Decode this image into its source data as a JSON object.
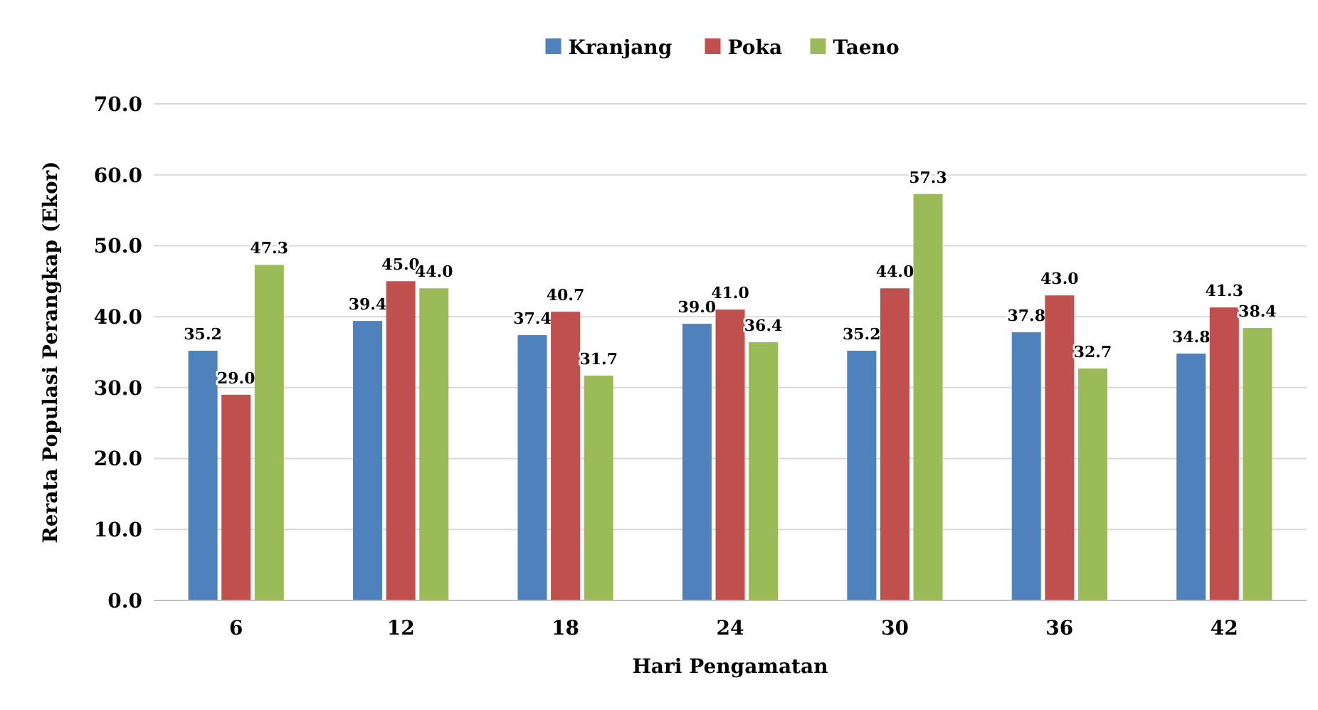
{
  "chart_data": {
    "type": "bar",
    "xlabel": "Hari Pengamatan",
    "ylabel": "Rerata Populasi Perangkap (Ekor)",
    "categories": [
      "6",
      "12",
      "18",
      "24",
      "30",
      "36",
      "42"
    ],
    "series": [
      {
        "name": "Kranjang",
        "color": "#4f81bd",
        "values": [
          35.2,
          39.4,
          37.4,
          39.0,
          35.2,
          37.8,
          34.8
        ],
        "value_labels": [
          "35.2",
          "39.4",
          "37.4",
          "39.0",
          "35.2",
          "37.8",
          "34.8"
        ]
      },
      {
        "name": "Poka",
        "color": "#c0504d",
        "values": [
          29.0,
          45.0,
          40.7,
          41.0,
          44.0,
          43.0,
          41.3
        ],
        "value_labels": [
          "29.0",
          "45.0",
          "40.7",
          "41.0",
          "44.0",
          "43.0",
          "41.3"
        ]
      },
      {
        "name": "Taeno",
        "color": "#9bbb59",
        "values": [
          47.3,
          44.0,
          31.7,
          36.4,
          57.3,
          32.7,
          38.4
        ],
        "value_labels": [
          "47.3",
          "44.0",
          "31.7",
          "36.4",
          "57.3",
          "32.7",
          "38.4"
        ]
      }
    ],
    "ylim": [
      0,
      70
    ],
    "yticks": [
      {
        "value": 0,
        "label": "0.0"
      },
      {
        "value": 10,
        "label": "10.0"
      },
      {
        "value": 20,
        "label": "20.0"
      },
      {
        "value": 30,
        "label": "30.0"
      },
      {
        "value": 40,
        "label": "40.0"
      },
      {
        "value": 50,
        "label": "50.0"
      },
      {
        "value": 60,
        "label": "60.0"
      },
      {
        "value": 70,
        "label": "70.0"
      }
    ],
    "grid": "y",
    "legend": "top"
  }
}
